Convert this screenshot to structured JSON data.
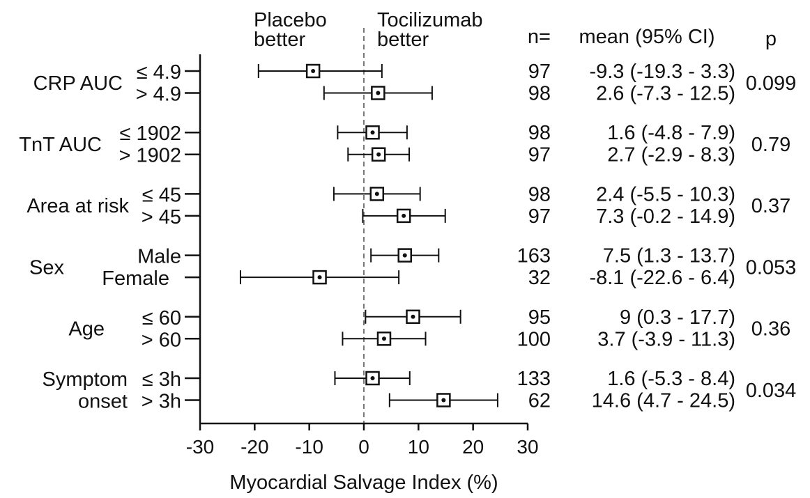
{
  "chart_data": {
    "type": "forest",
    "xlabel": "Myocardial Salvage Index (%)",
    "xlim": [
      -30,
      30
    ],
    "xticks": [
      "-30",
      "-20",
      "-10",
      "0",
      "10",
      "20",
      "30"
    ],
    "reference_line": 0,
    "annotations": {
      "left": [
        "Placebo",
        "better"
      ],
      "right": [
        "Tocilizumab",
        "better"
      ]
    },
    "headers": {
      "n": "n=",
      "ci": "mean (95% CI)",
      "p": "p"
    },
    "groups": [
      {
        "label": [
          "CRP AUC"
        ],
        "p": "0.099",
        "rows": [
          {
            "sub": "≤ 4.9",
            "n": "97",
            "mean": -9.3,
            "lo": -19.3,
            "hi": 3.3,
            "ci_text": "-9.3 (-19.3 - 3.3)"
          },
          {
            "sub": "> 4.9",
            "n": "98",
            "mean": 2.6,
            "lo": -7.3,
            "hi": 12.5,
            "ci_text": "2.6 (-7.3 - 12.5)"
          }
        ]
      },
      {
        "label": [
          "TnT AUC"
        ],
        "p": "0.79",
        "rows": [
          {
            "sub": "≤ 1902",
            "n": "98",
            "mean": 1.6,
            "lo": -4.8,
            "hi": 7.9,
            "ci_text": "1.6 (-4.8 - 7.9)"
          },
          {
            "sub": "> 1902",
            "n": "97",
            "mean": 2.7,
            "lo": -2.9,
            "hi": 8.3,
            "ci_text": "2.7 (-2.9 - 8.3)"
          }
        ]
      },
      {
        "label": [
          "Area at risk"
        ],
        "p": "0.37",
        "rows": [
          {
            "sub": "≤ 45",
            "n": "98",
            "mean": 2.4,
            "lo": -5.5,
            "hi": 10.3,
            "ci_text": "2.4 (-5.5 - 10.3)"
          },
          {
            "sub": "> 45",
            "n": "97",
            "mean": 7.3,
            "lo": -0.2,
            "hi": 14.9,
            "ci_text": "7.3 (-0.2 - 14.9)"
          }
        ]
      },
      {
        "label": [
          "Sex"
        ],
        "p": "0.053",
        "rows": [
          {
            "sub": "Male",
            "n": "163",
            "mean": 7.5,
            "lo": 1.3,
            "hi": 13.7,
            "ci_text": "7.5 (1.3 - 13.7)"
          },
          {
            "sub": "Female",
            "n": "32",
            "mean": -8.1,
            "lo": -22.6,
            "hi": 6.4,
            "ci_text": "-8.1 (-22.6 - 6.4)"
          }
        ]
      },
      {
        "label": [
          "Age"
        ],
        "p": "0.36",
        "rows": [
          {
            "sub": "≤ 60",
            "n": "95",
            "mean": 9,
            "lo": 0.3,
            "hi": 17.7,
            "ci_text": "9 (0.3 - 17.7)"
          },
          {
            "sub": "> 60",
            "n": "100",
            "mean": 3.7,
            "lo": -3.9,
            "hi": 11.3,
            "ci_text": "3.7 (-3.9 - 11.3)"
          }
        ]
      },
      {
        "label": [
          "Symptom",
          "onset"
        ],
        "p": "0.034",
        "rows": [
          {
            "sub": "≤ 3h",
            "n": "133",
            "mean": 1.6,
            "lo": -5.3,
            "hi": 8.4,
            "ci_text": "1.6 (-5.3 - 8.4)"
          },
          {
            "sub": "> 3h",
            "n": "62",
            "mean": 14.6,
            "lo": 4.7,
            "hi": 24.5,
            "ci_text": "14.6 (4.7 - 24.5)"
          }
        ]
      }
    ]
  }
}
